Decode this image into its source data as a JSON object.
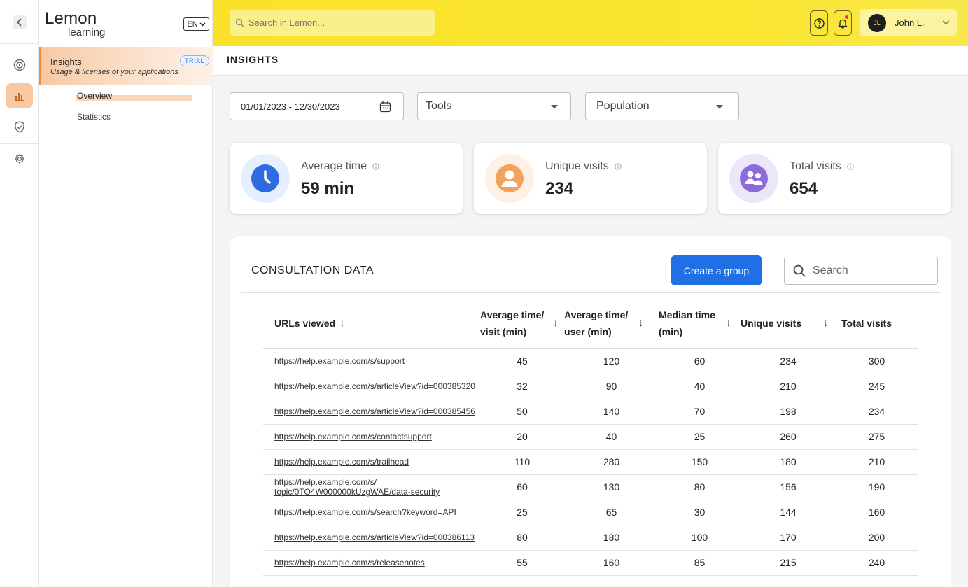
{
  "app": {
    "brand_top": "Lemon",
    "brand_bottom": "learning",
    "language": "EN"
  },
  "sidebar_panel": {
    "section_title": "Insights",
    "section_subtitle": "Usage & licenses of your applications",
    "badge": "TRIAL",
    "items": [
      {
        "label": "Overview",
        "active": true
      },
      {
        "label": "Statistics",
        "active": false
      }
    ]
  },
  "topbar": {
    "search_placeholder": "Search in Lemon...",
    "user_initials": "JL",
    "user_name": "John L."
  },
  "page": {
    "title": "INSIGHTS"
  },
  "filters": {
    "date_range": "01/01/2023 - 12/30/2023",
    "tools_label": "Tools",
    "population_label": "Population"
  },
  "stats": [
    {
      "label": "Average time",
      "value": "59 min",
      "icon": "clock-icon",
      "color": "#2e6be3",
      "bg": "#e6efff"
    },
    {
      "label": "Unique visits",
      "value": "234",
      "icon": "user-icon",
      "color": "#f0a35e",
      "bg": "#fdf1e6"
    },
    {
      "label": "Total visits",
      "value": "654",
      "icon": "users-icon",
      "color": "#8e6bdc",
      "bg": "#ece6fb"
    }
  ],
  "table": {
    "title": "CONSULTATION DATA",
    "create_button": "Create a group",
    "search_placeholder": "Search",
    "columns": [
      "URLs viewed",
      "Average time/ visit (min)",
      "Average time/ user (min)",
      "Median time (min)",
      "Unique visits",
      "Total visits"
    ],
    "rows": [
      {
        "url": "https://help.example.com/s/support",
        "avg_visit": "45",
        "avg_user": "120",
        "median": "60",
        "unique": "234",
        "total": "300"
      },
      {
        "url": "https://help.example.com/s/articleView?id=000385320",
        "avg_visit": "32",
        "avg_user": "90",
        "median": "40",
        "unique": "210",
        "total": "245"
      },
      {
        "url": "https://help.example.com/s/articleView?id=000385456",
        "avg_visit": "50",
        "avg_user": "140",
        "median": "70",
        "unique": "198",
        "total": "234"
      },
      {
        "url": "https://help.example.com/s/contactsupport",
        "avg_visit": "20",
        "avg_user": "40",
        "median": "25",
        "unique": "260",
        "total": "275"
      },
      {
        "url": "https://help.example.com/s/trailhead",
        "avg_visit": "110",
        "avg_user": "280",
        "median": "150",
        "unique": "180",
        "total": "210"
      },
      {
        "url": "https://help.example.com/s/ topic/0TO4W000000kUzgWAE/data-security",
        "avg_visit": "60",
        "avg_user": "130",
        "median": "80",
        "unique": "156",
        "total": "190"
      },
      {
        "url": "https://help.example.com/s/search?keyword=API",
        "avg_visit": "25",
        "avg_user": "65",
        "median": "30",
        "unique": "144",
        "total": "160"
      },
      {
        "url": "https://help.example.com/s/articleView?id=000386113",
        "avg_visit": "80",
        "avg_user": "180",
        "median": "100",
        "unique": "170",
        "total": "200"
      },
      {
        "url": "https://help.example.com/s/releasenotes",
        "avg_visit": "55",
        "avg_user": "160",
        "median": "85",
        "unique": "215",
        "total": "240"
      }
    ]
  }
}
